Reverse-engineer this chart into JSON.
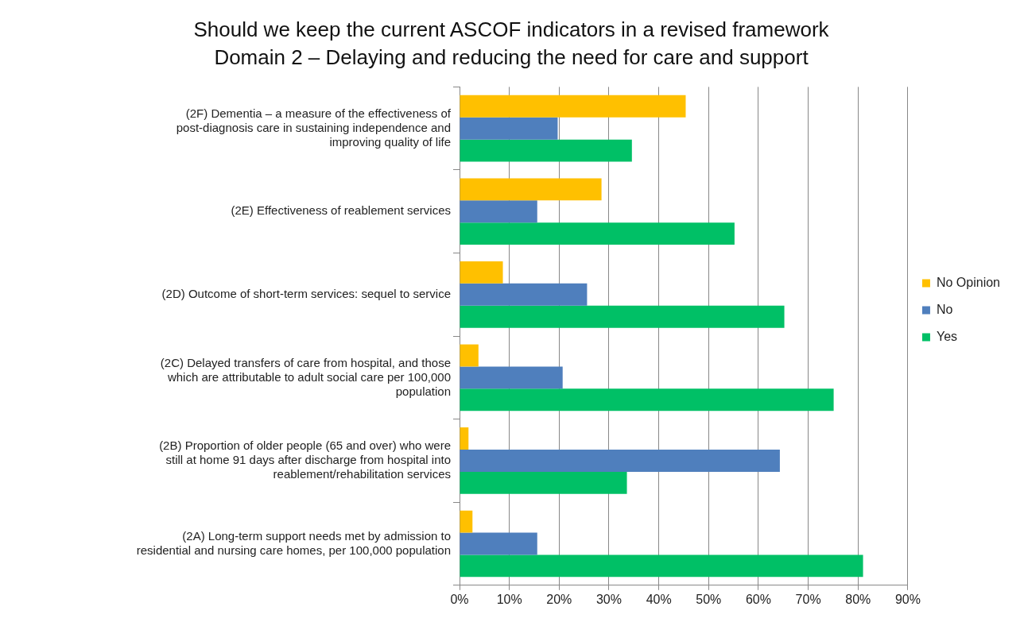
{
  "chart_data": {
    "type": "bar",
    "orientation": "horizontal",
    "title": "Should we keep the current ASCOF indicators in a revised framework",
    "subtitle": "Domain 2 – Delaying and reducing the need for care and support",
    "categories": [
      "(2F) Dementia – a measure of the effectiveness of post-diagnosis care in sustaining independence and improving quality of life",
      "(2E) Effectiveness of reablement services",
      "(2D) Outcome of short-term services: sequel to service",
      "(2C) Delayed transfers of care from hospital, and those which are attributable to adult social care per 100,000 population",
      "(2B) Proportion of older people (65 and over) who were still at home 91 days after discharge from hospital into reablement/rehabilitation services",
      "(2A) Long-term support needs met by admission to residential and nursing care homes, per 100,000 population"
    ],
    "series": [
      {
        "name": "No Opinion",
        "color": "#ffc000",
        "values": [
          45.4,
          28.5,
          8.7,
          3.8,
          1.8,
          2.6
        ]
      },
      {
        "name": "No",
        "color": "#4f7fbd",
        "values": [
          19.7,
          15.6,
          25.6,
          20.7,
          64.3,
          15.6
        ]
      },
      {
        "name": "Yes",
        "color": "#00c066",
        "values": [
          34.6,
          55.2,
          65.2,
          75.1,
          33.6,
          81
        ]
      }
    ],
    "xlim": [
      0,
      90
    ],
    "xticks": [
      {
        "value": 0,
        "label": "0%"
      },
      {
        "value": 10,
        "label": "10%"
      },
      {
        "value": 20,
        "label": "20%"
      },
      {
        "value": 30,
        "label": "30%"
      },
      {
        "value": 40,
        "label": "40%"
      },
      {
        "value": 50,
        "label": "50%"
      },
      {
        "value": 60,
        "label": "60%"
      },
      {
        "value": 70,
        "label": "70%"
      },
      {
        "value": 80,
        "label": "80%"
      },
      {
        "value": 90,
        "label": "90%"
      }
    ],
    "grid": "x",
    "legend": "right"
  }
}
